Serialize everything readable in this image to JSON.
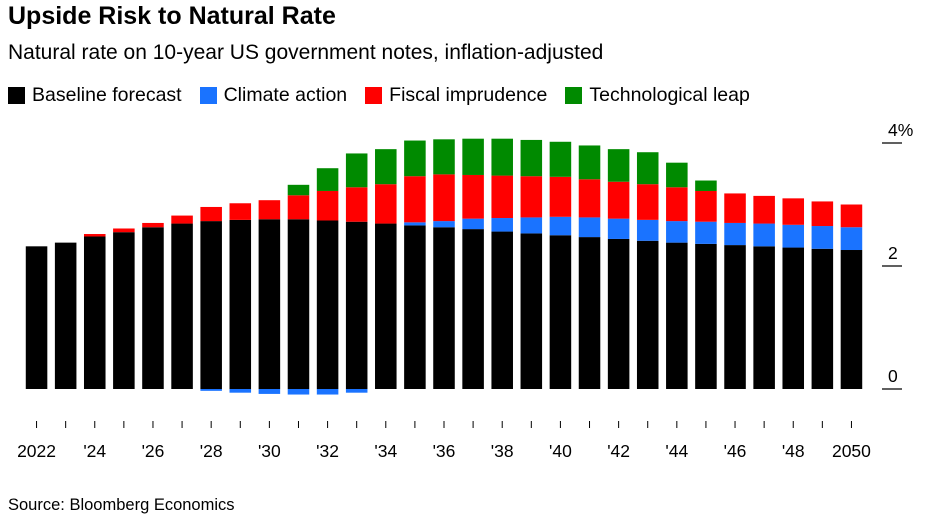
{
  "title": "Upside Risk to Natural Rate",
  "subtitle": "Natural rate on 10-year US government notes, inflation-adjusted",
  "source": "Source: Bloomberg Economics",
  "colors": {
    "baseline": "#000000",
    "climate": "#1a73ff",
    "fiscal": "#ff0000",
    "tech": "#008a00"
  },
  "chart_data": {
    "type": "bar",
    "stacked": true,
    "legend_position": "top-left",
    "categories": [
      "2022",
      "2023",
      "2024",
      "2025",
      "2026",
      "2027",
      "2028",
      "2029",
      "2030",
      "2031",
      "2032",
      "2033",
      "2034",
      "2035",
      "2036",
      "2037",
      "2038",
      "2039",
      "2040",
      "2041",
      "2042",
      "2043",
      "2044",
      "2045",
      "2046",
      "2047",
      "2048",
      "2049",
      "2050"
    ],
    "tick_labels": [
      "2022",
      "'24",
      "'26",
      "'28",
      "'30",
      "'32",
      "'34",
      "'36",
      "'38",
      "'40",
      "'42",
      "'44",
      "'46",
      "'48",
      "2050"
    ],
    "y_ticks": [
      "0",
      "2",
      "4%"
    ],
    "y_tick_values": [
      0,
      2,
      4
    ],
    "ylim": [
      -0.15,
      4.3
    ],
    "series": [
      {
        "name": "Baseline forecast",
        "color_key": "baseline",
        "values": [
          2.32,
          2.38,
          2.48,
          2.55,
          2.63,
          2.69,
          2.73,
          2.75,
          2.76,
          2.76,
          2.74,
          2.72,
          2.69,
          2.66,
          2.63,
          2.6,
          2.56,
          2.53,
          2.5,
          2.47,
          2.44,
          2.41,
          2.38,
          2.36,
          2.34,
          2.32,
          2.3,
          2.28,
          2.26
        ]
      },
      {
        "name": "Climate action",
        "color_key": "climate",
        "values": [
          0,
          0,
          0,
          0,
          0,
          0,
          -0.03,
          -0.06,
          -0.08,
          -0.09,
          -0.09,
          -0.06,
          0,
          0.05,
          0.1,
          0.17,
          0.22,
          0.26,
          0.3,
          0.32,
          0.33,
          0.34,
          0.35,
          0.36,
          0.36,
          0.37,
          0.37,
          0.37,
          0.37
        ]
      },
      {
        "name": "Fiscal imprudence",
        "color_key": "fiscal",
        "values": [
          0,
          0,
          0.04,
          0.06,
          0.07,
          0.13,
          0.23,
          0.27,
          0.31,
          0.39,
          0.48,
          0.56,
          0.64,
          0.75,
          0.76,
          0.71,
          0.69,
          0.67,
          0.65,
          0.62,
          0.6,
          0.58,
          0.55,
          0.5,
          0.48,
          0.45,
          0.43,
          0.4,
          0.37
        ]
      },
      {
        "name": "Technological leap",
        "color_key": "tech",
        "values": [
          0,
          0,
          0,
          0,
          0,
          0,
          0,
          0,
          0,
          0.17,
          0.37,
          0.55,
          0.57,
          0.58,
          0.57,
          0.59,
          0.6,
          0.59,
          0.57,
          0.55,
          0.53,
          0.52,
          0.4,
          0.17,
          0,
          0,
          0,
          0,
          0
        ]
      }
    ]
  }
}
